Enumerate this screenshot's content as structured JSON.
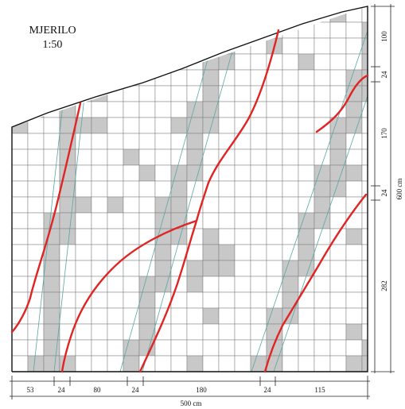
{
  "title": {
    "line1": "MJERILO",
    "line2": "1:50"
  },
  "dimensions": {
    "bottom": [
      "53",
      "24",
      "80",
      "24",
      "180",
      "24",
      "115"
    ],
    "bottom_total": "500 cm",
    "right": [
      "100",
      "24",
      "170",
      "24",
      "282"
    ],
    "right_total": "600 cm"
  },
  "colors": {
    "tile_white": "#ffffff",
    "tile_gray": "#c8c8c8",
    "grid_line": "#7a7a7a",
    "crack": "#e02424",
    "strip_edge": "#5aa6a0"
  }
}
